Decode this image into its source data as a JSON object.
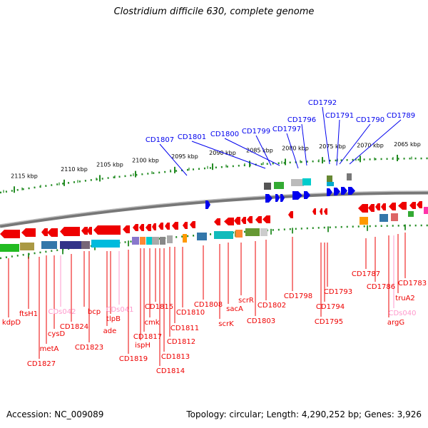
{
  "header": {
    "title": "Clostridium difficile 630, complete genome"
  },
  "footer": {
    "accession": "Accession: NC_009089",
    "topology": "Topology: circular; Length: 4,290,252 bp; Genes: 3,926"
  },
  "colors": {
    "forward_gene": "#0000ee",
    "reverse_gene": "#ee0000",
    "rna_gene": "#ff99cc",
    "genome_line": "#888888",
    "scale_tick": "#228b22"
  },
  "scale": {
    "unit": "kbp",
    "labels": [
      "2115 kbp",
      "2110 kbp",
      "2105 kbp",
      "2100 kbp",
      "2095 kbp",
      "2090 kbp",
      "2085 kbp",
      "2080 kbp",
      "2075 kbp",
      "2070 kbp",
      "2065 kbp"
    ]
  },
  "top_genes": [
    "CD1807",
    "CD1801",
    "CD1800",
    "CD1799",
    "CD1797",
    "CD1796",
    "CD1792",
    "CD1791",
    "CD1790",
    "CD1789"
  ],
  "bottom_genes": [
    {
      "label": "kdpD",
      "type": "CDS"
    },
    {
      "label": "ftsH1",
      "type": "CDS"
    },
    {
      "label": "CD1827",
      "type": "CDS"
    },
    {
      "label": "metA",
      "type": "CDS"
    },
    {
      "label": "cysD",
      "type": "CDS"
    },
    {
      "label": "CDs042",
      "type": "RNA"
    },
    {
      "label": "CD1824",
      "type": "CDS"
    },
    {
      "label": "CD1823",
      "type": "CDS"
    },
    {
      "label": "bcp",
      "type": "CDS"
    },
    {
      "label": "ade",
      "type": "CDS"
    },
    {
      "label": "tlpB",
      "type": "CDS"
    },
    {
      "label": "CDs041",
      "type": "RNA"
    },
    {
      "label": "CD1819",
      "type": "CDS"
    },
    {
      "label": "ispH",
      "type": "CDS"
    },
    {
      "label": "CD1817",
      "type": "CDS"
    },
    {
      "label": "cmk",
      "type": "CDS"
    },
    {
      "label": "CD1815",
      "type": "CDS"
    },
    {
      "label": "CD1814",
      "type": "CDS"
    },
    {
      "label": "CD1813",
      "type": "CDS"
    },
    {
      "label": "CD1812",
      "type": "CDS"
    },
    {
      "label": "CD1811",
      "type": "CDS"
    },
    {
      "label": "CD1810",
      "type": "CDS"
    },
    {
      "label": "CD1808",
      "type": "CDS"
    },
    {
      "label": "scrK",
      "type": "CDS"
    },
    {
      "label": "sacA",
      "type": "CDS"
    },
    {
      "label": "scrR",
      "type": "CDS"
    },
    {
      "label": "CD1803",
      "type": "CDS"
    },
    {
      "label": "CD1802",
      "type": "CDS"
    },
    {
      "label": "CD1798",
      "type": "CDS"
    },
    {
      "label": "CD1795",
      "type": "CDS"
    },
    {
      "label": "CD1794",
      "type": "CDS"
    },
    {
      "label": "CD1793",
      "type": "CDS"
    },
    {
      "label": "CD1787",
      "type": "CDS"
    },
    {
      "label": "CD1786",
      "type": "CDS"
    },
    {
      "label": "argG",
      "type": "CDS"
    },
    {
      "label": "CDs040",
      "type": "RNA"
    },
    {
      "label": "truA2",
      "type": "CDS"
    },
    {
      "label": "CD1783",
      "type": "CDS"
    }
  ]
}
